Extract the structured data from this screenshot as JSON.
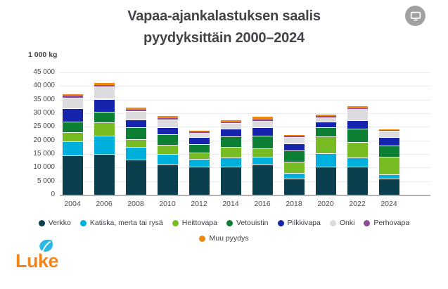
{
  "header": {
    "title_line1": "Vapaa-ajankalastuksen saalis",
    "title_line2": "pyydyksittäin 2000–2024",
    "display_button_icon": "monitor-icon"
  },
  "footer": {
    "logo_text": "Luke",
    "logo_leaf_icon": "leaf-icon"
  },
  "colors": {
    "background": "#ffffff",
    "title_text": "#454249",
    "axis_text": "#4b4b4b",
    "gridline": "#ececec",
    "axis_line": "#b3b3b3",
    "button_background": "#a1a1a3",
    "logo_orange": "#f0861c",
    "logo_leaf_cyan": "#2ab8e8"
  },
  "chart_data": {
    "type": "bar",
    "stacked": true,
    "title": "Vapaa-ajankalastuksen saalis pyydyksittäin 2000–2024",
    "unit_label": "1 000 kg",
    "xlabel": "",
    "ylabel": "1 000 kg",
    "ylim": [
      0,
      45000
    ],
    "ytick_step": 5000,
    "ytick_labels": [
      "0",
      "5 000",
      "10 000",
      "15 000",
      "20 000",
      "25 000",
      "30 000",
      "35 000",
      "40 000",
      "45 000"
    ],
    "grid": true,
    "legend_position": "bottom",
    "categories": [
      "2004",
      "2006",
      "2008",
      "2010",
      "2012",
      "2014",
      "2016",
      "2018",
      "2020",
      "2022",
      "2024"
    ],
    "series": [
      {
        "name": "Verkko",
        "color": "#0b3f4d",
        "values": [
          14500,
          14900,
          12900,
          11200,
          10300,
          10300,
          11000,
          6000,
          10300,
          10300,
          6000
        ]
      },
      {
        "name": "Katiska, merta tai rysä",
        "color": "#00b0dc",
        "values": [
          5200,
          6900,
          4600,
          3900,
          2800,
          3500,
          3000,
          2000,
          5000,
          3300,
          1600
        ]
      },
      {
        "name": "Heittovapa",
        "color": "#77bc22",
        "values": [
          3300,
          4800,
          3000,
          3200,
          2300,
          3700,
          3000,
          4100,
          6100,
          5900,
          6300
        ]
      },
      {
        "name": "Vetouistin",
        "color": "#0d7f34",
        "values": [
          4000,
          3800,
          4300,
          3900,
          3200,
          3900,
          4800,
          4200,
          3300,
          4700,
          4300
        ]
      },
      {
        "name": "Pilkkivapa",
        "color": "#1523ad",
        "values": [
          4900,
          4900,
          2800,
          2600,
          2500,
          3000,
          2900,
          2600,
          2300,
          3300,
          2900
        ]
      },
      {
        "name": "Onki",
        "color": "#dcdcde",
        "values": [
          3900,
          4500,
          3100,
          2900,
          1900,
          1900,
          2600,
          2400,
          1600,
          4200,
          2500
        ]
      },
      {
        "name": "Perhovapa",
        "color": "#8d4a97",
        "values": [
          600,
          500,
          600,
          500,
          200,
          400,
          300,
          400,
          300,
          200,
          200
        ]
      },
      {
        "name": "Muu pyydys",
        "color": "#f2870e",
        "values": [
          900,
          1000,
          900,
          900,
          700,
          900,
          1400,
          300,
          600,
          1000,
          300
        ]
      }
    ],
    "totals": [
      37300,
      41300,
      32200,
      29100,
      23900,
      27600,
      29000,
      22000,
      29500,
      32900,
      24100
    ]
  }
}
